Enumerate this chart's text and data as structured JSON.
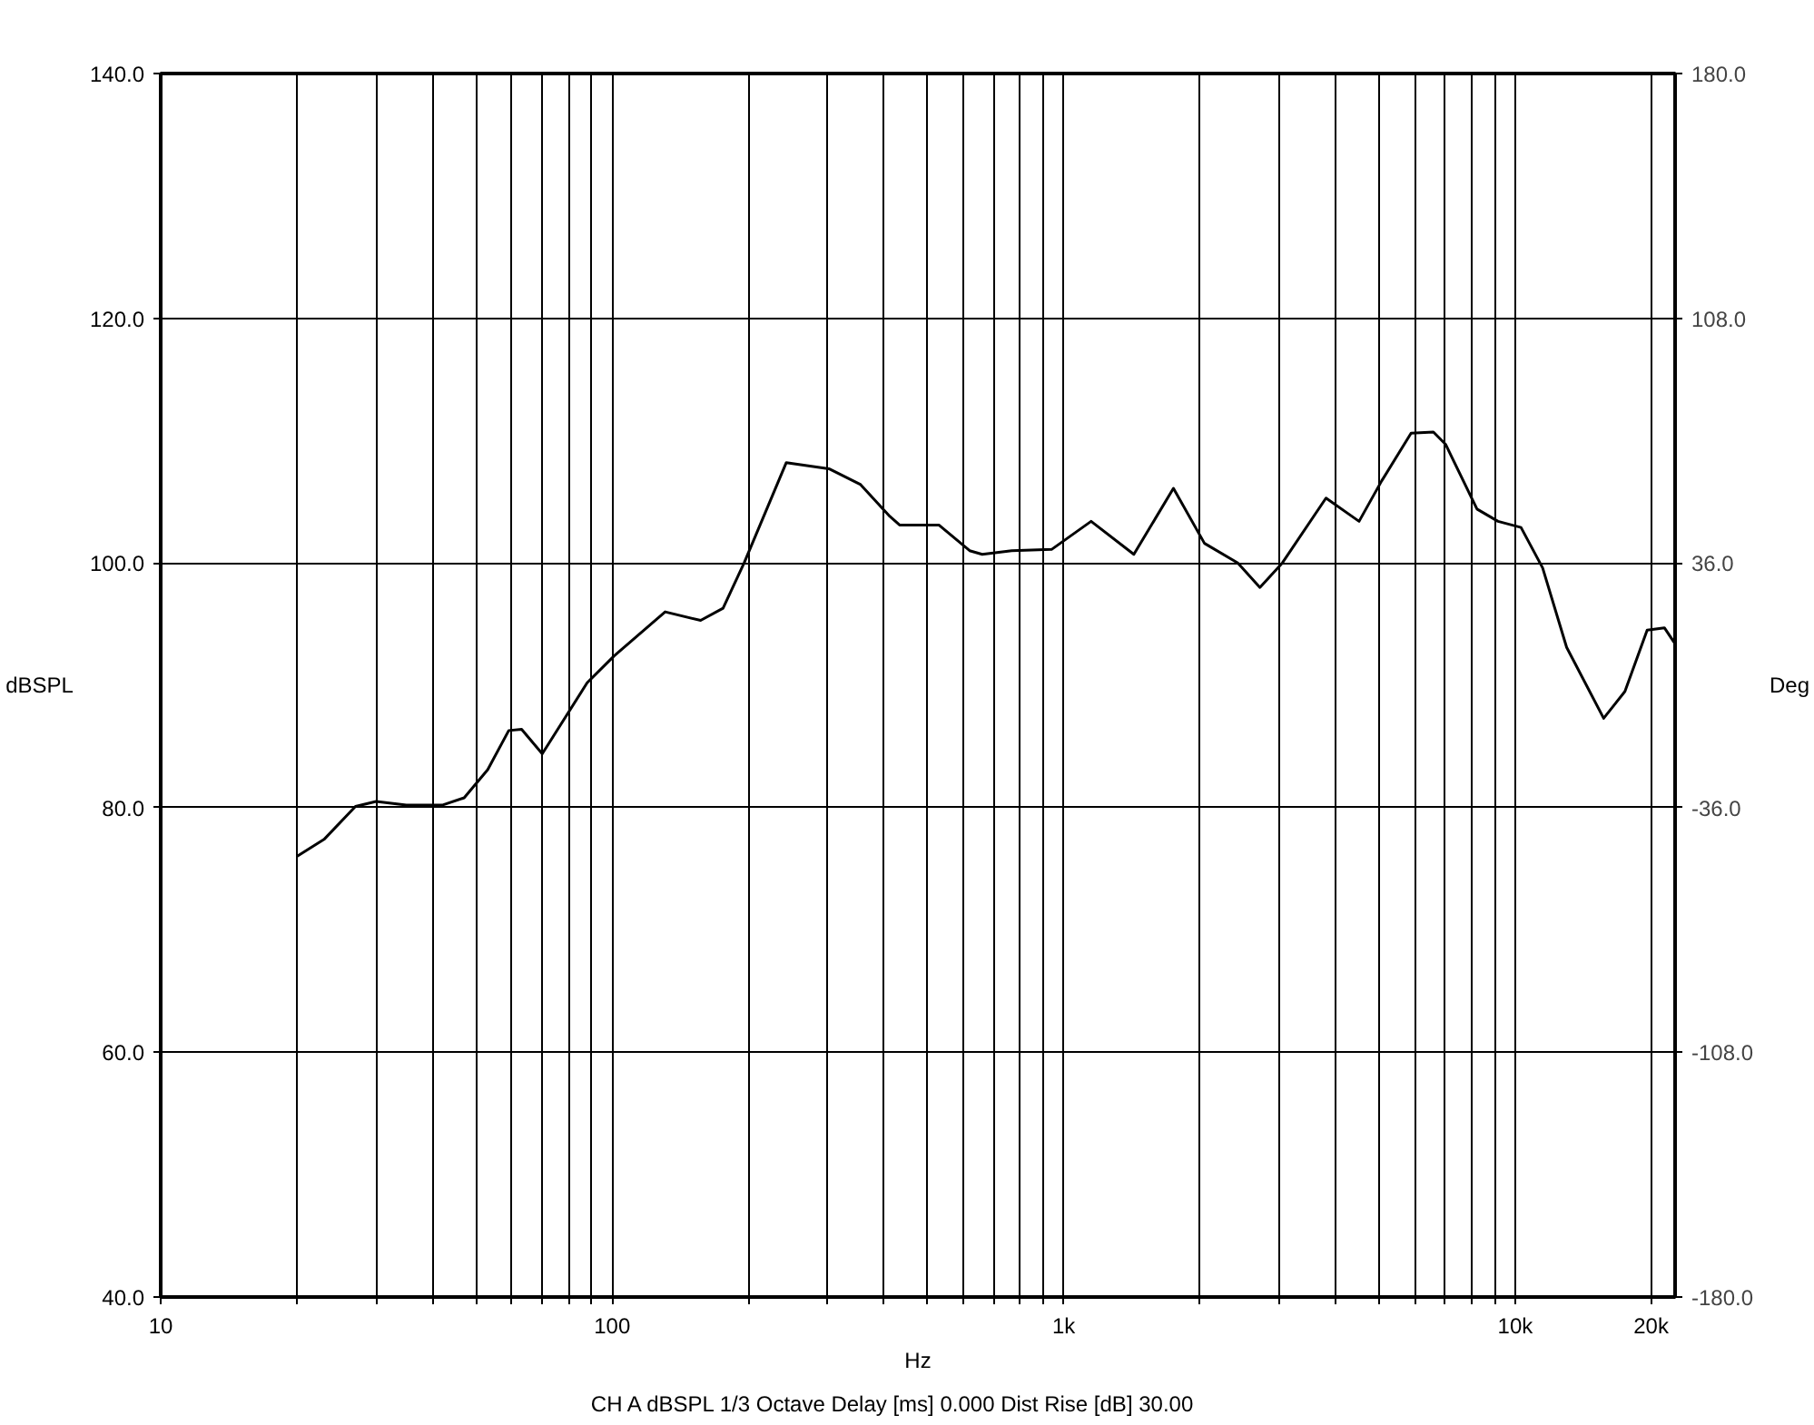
{
  "chart_data": {
    "type": "line",
    "ylabel": "dBSPL",
    "y2label": "Deg",
    "xlabel": "Hz",
    "log": "x",
    "grid": true,
    "marker": "none",
    "line_style": "solid",
    "annotations": [
      "CH A   dBSPL   1/3 Octave   Delay [ms] 0.000   Dist Rise [dB] 30.00"
    ],
    "xlim": [
      10,
      22600
    ],
    "ylim": [
      40,
      140
    ],
    "y2lim": [
      -180,
      180
    ],
    "xticks": [
      10,
      {
        "value": 20,
        "label": null
      },
      {
        "value": 30,
        "label": null
      },
      {
        "value": 40,
        "label": null
      },
      {
        "value": 50,
        "label": null
      },
      {
        "value": 60,
        "label": null
      },
      {
        "value": 70,
        "label": null
      },
      {
        "value": 80,
        "label": null
      },
      {
        "value": 90,
        "label": null
      },
      100,
      {
        "value": 200,
        "label": null
      },
      {
        "value": 300,
        "label": null
      },
      {
        "value": 400,
        "label": null
      },
      {
        "value": 500,
        "label": null
      },
      {
        "value": 600,
        "label": null
      },
      {
        "value": 700,
        "label": null
      },
      {
        "value": 800,
        "label": null
      },
      {
        "value": 900,
        "label": null
      },
      {
        "value": 1000,
        "label": "1k"
      },
      {
        "value": 2000,
        "label": null
      },
      {
        "value": 3000,
        "label": null
      },
      {
        "value": 4000,
        "label": null
      },
      {
        "value": 5000,
        "label": null
      },
      {
        "value": 6000,
        "label": null
      },
      {
        "value": 7000,
        "label": null
      },
      {
        "value": 8000,
        "label": null
      },
      {
        "value": 9000,
        "label": null
      },
      {
        "value": 10000,
        "label": "10k"
      },
      {
        "value": 20000,
        "label": "20k"
      }
    ],
    "yticks": [
      {
        "value": 40,
        "label": "40.0"
      },
      {
        "value": 60,
        "label": "60.0"
      },
      {
        "value": 80,
        "label": "80.0"
      },
      {
        "value": 100,
        "label": "100.0"
      },
      {
        "value": 120,
        "label": "120.0"
      },
      {
        "value": 140,
        "label": "140.0"
      }
    ],
    "y2ticks": [
      {
        "value": -180,
        "label": "-180.0"
      },
      {
        "value": -108,
        "label": "-108.0"
      },
      {
        "value": -36,
        "label": "-36.0"
      },
      {
        "value": 36,
        "label": "36.0"
      },
      {
        "value": 108,
        "label": "108.0"
      },
      {
        "value": 180,
        "label": "180.0"
      }
    ],
    "x": [
      20,
      23,
      27,
      30,
      35,
      42,
      47,
      53,
      59,
      63,
      70,
      88,
      101,
      131,
      157,
      176,
      196,
      243,
      302,
      355,
      412,
      433,
      529,
      619,
      660,
      767,
      940,
      1150,
      1430,
      1750,
      2050,
      2430,
      2720,
      3050,
      3810,
      4510,
      5060,
      5880,
      6590,
      7010,
      8230,
      9160,
      10300,
      11500,
      13000,
      15700,
      17500,
      19600,
      21400,
      22500
    ],
    "series": [
      {
        "color": "#000000",
        "values": [
          76,
          77.4,
          80.1,
          80.5,
          80.2,
          80.2,
          80.8,
          83.1,
          86.3,
          86.4,
          84.4,
          90.2,
          92.4,
          96,
          95.3,
          96.3,
          100,
          108.2,
          107.7,
          106.4,
          103.8,
          103.1,
          103.1,
          101,
          100.7,
          101,
          101.1,
          103.4,
          100.7,
          106.1,
          101.6,
          100,
          98,
          100,
          105.3,
          103.4,
          106.7,
          110.6,
          110.7,
          109.7,
          104.4,
          103.4,
          102.9,
          99.6,
          93.1,
          87.3,
          89.5,
          94.5,
          94.7,
          93.5
        ]
      }
    ]
  }
}
